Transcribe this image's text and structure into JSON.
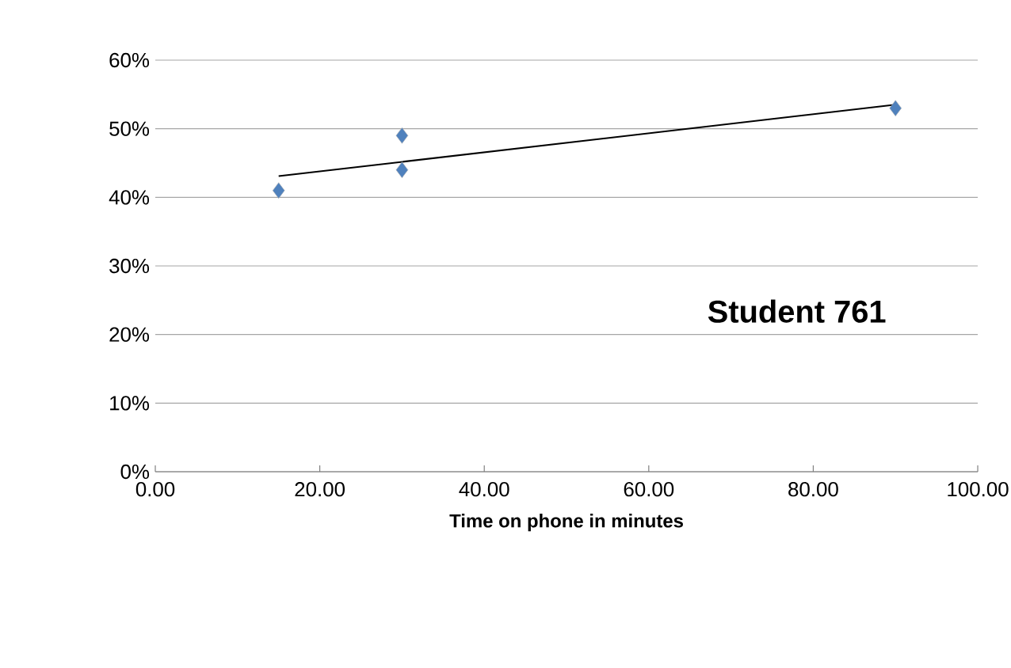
{
  "chart_data": {
    "type": "scatter",
    "xlabel": "Time on phone in minutes",
    "xlim": [
      0,
      100
    ],
    "ylim": [
      0,
      60
    ],
    "xticks": [
      {
        "value": 0,
        "label": "0.00"
      },
      {
        "value": 20,
        "label": "20.00"
      },
      {
        "value": 40,
        "label": "40.00"
      },
      {
        "value": 60,
        "label": "60.00"
      },
      {
        "value": 80,
        "label": "80.00"
      },
      {
        "value": 100,
        "label": "100.00"
      }
    ],
    "yticks": [
      {
        "value": 0,
        "label": "0%"
      },
      {
        "value": 10,
        "label": "10%"
      },
      {
        "value": 20,
        "label": "20%"
      },
      {
        "value": 30,
        "label": "30%"
      },
      {
        "value": 40,
        "label": "40%"
      },
      {
        "value": 50,
        "label": "50%"
      },
      {
        "value": 60,
        "label": "60%"
      }
    ],
    "grid": "y",
    "annotations": [
      "Student 761"
    ],
    "series": [
      {
        "color": "#4f81bd",
        "marker": "diamond",
        "x": [
          15,
          30,
          30,
          90
        ],
        "values": [
          41,
          49,
          44,
          53
        ]
      },
      {
        "type": "line",
        "color": "#000000",
        "marker": "none",
        "x": [
          15,
          90
        ],
        "values": [
          43.1,
          53.5
        ]
      }
    ]
  }
}
